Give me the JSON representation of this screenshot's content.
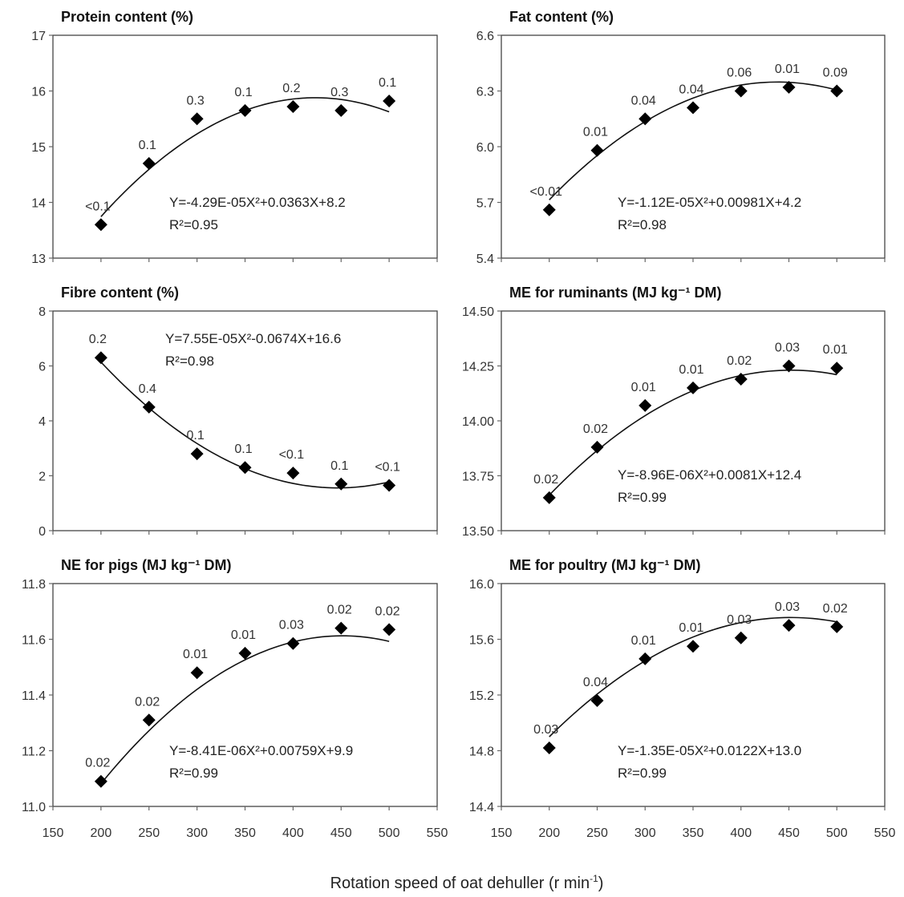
{
  "figure": {
    "xlabel_main": "Rotation speed of oat dehuller (r min",
    "xlabel_sup": "-1",
    "xlabel_end": ")"
  },
  "chart_data": [
    {
      "type": "scatter",
      "title": "Protein content (%)",
      "xlim": [
        150,
        550
      ],
      "xticks": [
        150,
        200,
        250,
        300,
        350,
        400,
        450,
        500,
        550
      ],
      "ylim": [
        13,
        17
      ],
      "yticks": [
        "13",
        "14",
        "15",
        "16",
        "17"
      ],
      "x": [
        200,
        250,
        300,
        350,
        400,
        450,
        500
      ],
      "y": [
        13.6,
        14.7,
        15.5,
        15.65,
        15.72,
        15.65,
        15.82
      ],
      "point_labels": [
        "<0.1",
        "0.1",
        "0.3",
        "0.1",
        "0.2",
        "0.3",
        "0.1"
      ],
      "fit": {
        "a": -4.29e-05,
        "b": 0.0363,
        "c": 8.2
      },
      "equation": "Y=-4.29E-05X²+0.0363X+8.2",
      "r2": "R²=0.95",
      "eq_pos": "lower-right"
    },
    {
      "type": "scatter",
      "title": "Fat content (%)",
      "xlim": [
        150,
        550
      ],
      "xticks": [
        150,
        200,
        250,
        300,
        350,
        400,
        450,
        500,
        550
      ],
      "ylim": [
        5.4,
        6.6
      ],
      "yticks": [
        "5.4",
        "5.7",
        "6.0",
        "6.3",
        "6.6"
      ],
      "x": [
        200,
        250,
        300,
        350,
        400,
        450,
        500
      ],
      "y": [
        5.66,
        5.98,
        6.15,
        6.21,
        6.3,
        6.32,
        6.3
      ],
      "point_labels": [
        "<0.01",
        "0.01",
        "0.04",
        "0.04",
        "0.06",
        "0.01",
        "0.09"
      ],
      "fit": {
        "a": -1.12e-05,
        "b": 0.00981,
        "c": 4.2
      },
      "equation": "Y=-1.12E-05X²+0.00981X+4.2",
      "r2": "R²=0.98",
      "eq_pos": "lower-right"
    },
    {
      "type": "scatter",
      "title": "Fibre content (%)",
      "xlim": [
        150,
        550
      ],
      "xticks": [
        150,
        200,
        250,
        300,
        350,
        400,
        450,
        500,
        550
      ],
      "ylim": [
        0,
        8
      ],
      "yticks": [
        "0",
        "2",
        "4",
        "6",
        "8"
      ],
      "x": [
        200,
        250,
        300,
        350,
        400,
        450,
        500
      ],
      "y": [
        6.3,
        4.5,
        2.8,
        2.3,
        2.1,
        1.7,
        1.65
      ],
      "point_labels": [
        "0.2",
        "0.4",
        "0.1",
        "0.1",
        "<0.1",
        "0.1",
        "<0.1"
      ],
      "fit": {
        "a": 7.55e-05,
        "b": -0.0674,
        "c": 16.6
      },
      "equation": "Y=7.55E-05X²-0.0674X+16.6",
      "r2": "R²=0.98",
      "eq_pos": "upper-right"
    },
    {
      "type": "scatter",
      "title": "ME for ruminants (MJ kg⁻¹ DM)",
      "xlim": [
        150,
        550
      ],
      "xticks": [
        150,
        200,
        250,
        300,
        350,
        400,
        450,
        500,
        550
      ],
      "ylim": [
        13.5,
        14.5
      ],
      "yticks": [
        "13.50",
        "13.75",
        "14.00",
        "14.25",
        "14.50"
      ],
      "x": [
        200,
        250,
        300,
        350,
        400,
        450,
        500
      ],
      "y": [
        13.65,
        13.88,
        14.07,
        14.15,
        14.19,
        14.25,
        14.24
      ],
      "point_labels": [
        "0.02",
        "0.02",
        "0.01",
        "0.01",
        "0.02",
        "0.03",
        "0.01"
      ],
      "fit": {
        "a": -8.96e-06,
        "b": 0.0081,
        "c": 12.4
      },
      "equation": "Y=-8.96E-06X²+0.0081X+12.4",
      "r2": "R²=0.99",
      "eq_pos": "lower-right"
    },
    {
      "type": "scatter",
      "title": "NE for pigs (MJ kg⁻¹ DM)",
      "xlim": [
        150,
        550
      ],
      "xticks": [
        150,
        200,
        250,
        300,
        350,
        400,
        450,
        500,
        550
      ],
      "ylim": [
        11.0,
        11.8
      ],
      "yticks": [
        "11.0",
        "11.2",
        "11.4",
        "11.6",
        "11.8"
      ],
      "x": [
        200,
        250,
        300,
        350,
        400,
        450,
        500
      ],
      "y": [
        11.09,
        11.31,
        11.48,
        11.55,
        11.585,
        11.64,
        11.635
      ],
      "point_labels": [
        "0.02",
        "0.02",
        "0.01",
        "0.01",
        "0.03",
        "0.02",
        "0.02"
      ],
      "fit": {
        "a": -8.41e-06,
        "b": 0.00759,
        "c": 9.9
      },
      "equation": "Y=-8.41E-06X²+0.00759X+9.9",
      "r2": "R²=0.99",
      "eq_pos": "lower-right"
    },
    {
      "type": "scatter",
      "title": "ME for poultry (MJ kg⁻¹ DM)",
      "xlim": [
        150,
        550
      ],
      "xticks": [
        150,
        200,
        250,
        300,
        350,
        400,
        450,
        500,
        550
      ],
      "ylim": [
        14.4,
        16.0
      ],
      "yticks": [
        "14.4",
        "14.8",
        "15.2",
        "15.6",
        "16.0"
      ],
      "x": [
        200,
        250,
        300,
        350,
        400,
        450,
        500
      ],
      "y": [
        14.82,
        15.16,
        15.46,
        15.55,
        15.61,
        15.7,
        15.69
      ],
      "point_labels": [
        "0.03",
        "0.04",
        "0.01",
        "0.01",
        "0.03",
        "0.03",
        "0.02"
      ],
      "fit": {
        "a": -1.35e-05,
        "b": 0.0122,
        "c": 13.0
      },
      "equation": "Y=-1.35E-05X²+0.0122X+13.0",
      "r2": "R²=0.99",
      "eq_pos": "lower-right"
    }
  ]
}
